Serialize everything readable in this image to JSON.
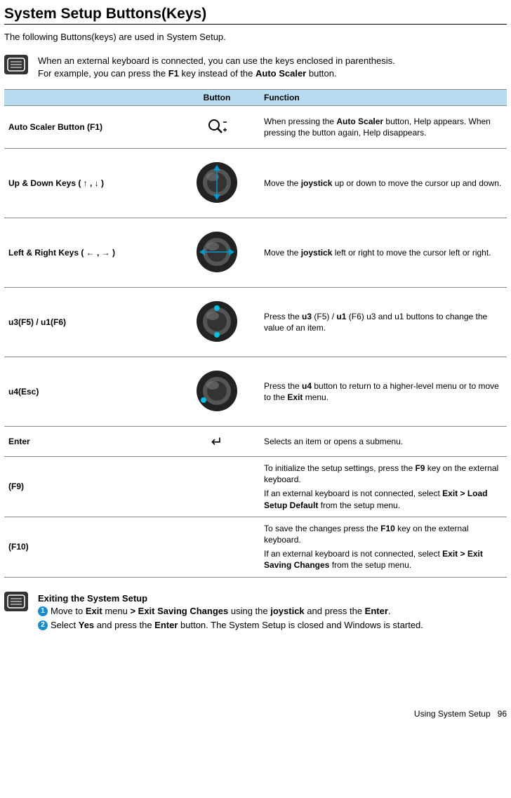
{
  "title": "System Setup Buttons(Keys)",
  "intro": "The following Buttons(keys) are used in System Setup.",
  "note1_line1": "When an external keyboard is connected, you can use the keys enclosed in parenthesis.",
  "note1_line2_pre": "For example, you can press the ",
  "note1_line2_b1": "F1",
  "note1_line2_mid": " key instead of the ",
  "note1_line2_b2": "Auto Scaler",
  "note1_line2_post": " button.",
  "thead_blank": "",
  "thead_button": "Button",
  "thead_function": "Function",
  "rows": [
    {
      "key": "Auto Scaler Button (F1)",
      "func_pre": "When pressing the ",
      "func_b1": "Auto Scaler",
      "func_post": " button, Help appears. When pressing the button again, Help disappears.",
      "height": "44",
      "icon": "magnify"
    },
    {
      "key": "Up & Down Keys ( ↑ , ↓ )",
      "func_pre": "Move the ",
      "func_b1": "joystick",
      "func_post": " up or down to move the cursor up and down.",
      "height": "82",
      "icon": "joystick-ud"
    },
    {
      "key": "Left & Right Keys ( ← , → )",
      "func_pre": "Move the ",
      "func_b1": "joystick",
      "func_post": " left or right to move the cursor left or right.",
      "height": "82",
      "icon": "joystick-lr"
    },
    {
      "key": "u3(F5) / u1(F6)",
      "func_pre": "Press the ",
      "func_b1": "u3",
      "func_mid1": " (F5) / ",
      "func_b2": "u1",
      "func_post": " (F6) u3 and u1 buttons to change the value of an item.",
      "height": "82",
      "icon": "joystick-u3u1"
    },
    {
      "key": "u4(Esc)",
      "func_pre": "Press the ",
      "func_b1": "u4",
      "func_mid1": " button to return to a higher-level menu or to move to the ",
      "func_b2": "Exit",
      "func_post": " menu.",
      "height": "82",
      "icon": "joystick-u4"
    },
    {
      "key": "Enter",
      "func_pre": "Selects an item or opens a submenu.",
      "height": "26",
      "icon": "enter"
    },
    {
      "key": "(F9)",
      "func_pre": "To initialize the setup settings, press the ",
      "func_b1": "F9",
      "func_mid1": " key on the external keyboard.",
      "func_br": true,
      "func_mid2": "If an external keyboard is not connected, select ",
      "func_b2": "Exit > Load Setup Default",
      "func_post": " from the setup menu.",
      "height": "68",
      "icon": "none"
    },
    {
      "key": "(F10)",
      "func_pre": "To save the changes press the ",
      "func_b1": "F10",
      "func_mid1": " key on the external keyboard.",
      "func_br": true,
      "func_mid2": "If an external keyboard is not connected, select ",
      "func_b2": "Exit > Exit Saving Changes",
      "func_post": " from the setup menu.",
      "height": "68",
      "icon": "none"
    }
  ],
  "exit_title": "Exiting the System Setup",
  "step1_pre": "Move to ",
  "step1_b1": "Exit",
  "step1_mid1": " menu ",
  "step1_b2": "> Exit Saving Changes",
  "step1_mid2": " using the ",
  "step1_b3": "joystick",
  "step1_mid3": " and press the ",
  "step1_b4": "Enter",
  "step1_post": ".",
  "step2_pre": "Select ",
  "step2_b1": "Yes",
  "step2_mid1": " and press the ",
  "step2_b2": "Enter",
  "step2_post": " button. The System Setup is closed and Windows is started.",
  "footer_text": "Using System Setup",
  "footer_page": "96",
  "colors": {
    "header_bg": "#b8dcf0",
    "arrow_blue": "#0099cc",
    "dot_blue": "#00bfe0",
    "bullet": "#1a8cc9"
  }
}
